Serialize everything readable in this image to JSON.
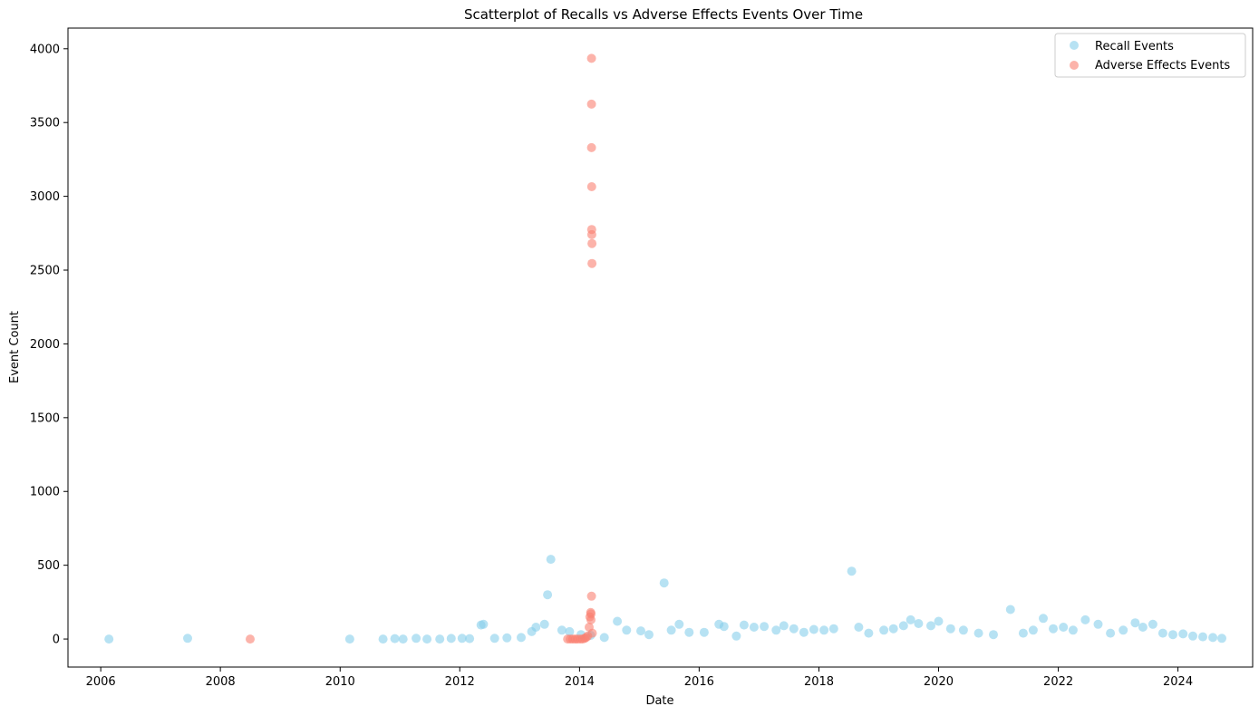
{
  "chart_data": {
    "type": "scatter",
    "title": "Scatterplot of Recalls vs Adverse Effects Events Over Time",
    "xlabel": "Date",
    "ylabel": "Event Count",
    "x_is_date": true,
    "xlim": [
      "2005-06-15",
      "2025-04-01"
    ],
    "ylim": [
      -190,
      4140
    ],
    "xticks": [
      "2006",
      "2008",
      "2010",
      "2012",
      "2014",
      "2016",
      "2018",
      "2020",
      "2022",
      "2024"
    ],
    "yticks": [
      0,
      500,
      1000,
      1500,
      2000,
      2500,
      3000,
      3500,
      4000
    ],
    "grid": false,
    "legend_position": "upper-right",
    "series": [
      {
        "name": "Recall Events",
        "color": "#87CEEB",
        "x": [
          "2006-02-20",
          "2007-06-15",
          "2010-03-01",
          "2010-09-20",
          "2010-12-01",
          "2011-01-20",
          "2011-04-10",
          "2011-06-15",
          "2011-09-01",
          "2011-11-10",
          "2012-01-15",
          "2012-03-01",
          "2012-05-10",
          "2012-05-25",
          "2012-08-01",
          "2012-10-15",
          "2013-01-10",
          "2013-03-15",
          "2013-04-10",
          "2013-06-01",
          "2013-06-20",
          "2013-07-10",
          "2013-09-15",
          "2013-11-01",
          "2014-01-10",
          "2014-03-10",
          "2014-06-01",
          "2014-08-20",
          "2014-10-15",
          "2015-01-10",
          "2015-03-01",
          "2015-06-01",
          "2015-07-15",
          "2015-09-01",
          "2015-11-01",
          "2016-02-01",
          "2016-05-01",
          "2016-06-01",
          "2016-08-15",
          "2016-10-01",
          "2016-12-01",
          "2017-02-01",
          "2017-04-15",
          "2017-06-01",
          "2017-08-01",
          "2017-10-01",
          "2017-12-01",
          "2018-02-01",
          "2018-04-01",
          "2018-07-20",
          "2018-09-01",
          "2018-11-01",
          "2019-02-01",
          "2019-04-01",
          "2019-06-01",
          "2019-07-15",
          "2019-09-01",
          "2019-11-15",
          "2020-01-01",
          "2020-03-15",
          "2020-06-01",
          "2020-09-01",
          "2020-12-01",
          "2021-03-15",
          "2021-06-01",
          "2021-08-01",
          "2021-10-01",
          "2021-12-01",
          "2022-02-01",
          "2022-04-01",
          "2022-06-15",
          "2022-09-01",
          "2022-11-15",
          "2023-02-01",
          "2023-04-15",
          "2023-06-01",
          "2023-08-01",
          "2023-10-01",
          "2023-12-01",
          "2024-02-01",
          "2024-04-01",
          "2024-06-01",
          "2024-08-01",
          "2024-09-25"
        ],
        "y": [
          0,
          5,
          0,
          0,
          3,
          0,
          5,
          0,
          0,
          4,
          5,
          3,
          95,
          100,
          5,
          8,
          10,
          50,
          80,
          100,
          300,
          540,
          60,
          50,
          30,
          25,
          10,
          120,
          60,
          55,
          30,
          380,
          60,
          100,
          45,
          45,
          100,
          85,
          20,
          95,
          80,
          85,
          60,
          90,
          70,
          45,
          65,
          60,
          70,
          460,
          80,
          40,
          60,
          70,
          90,
          130,
          105,
          90,
          120,
          70,
          60,
          40,
          30,
          200,
          40,
          60,
          140,
          70,
          80,
          60,
          130,
          100,
          40,
          60,
          110,
          80,
          100,
          40,
          30,
          35,
          20,
          15,
          10,
          5
        ]
      },
      {
        "name": "Adverse Effects Events",
        "color": "#FA8072",
        "x": [
          "2008-07-01",
          "2013-10-20",
          "2013-11-05",
          "2013-11-20",
          "2013-12-05",
          "2013-12-20",
          "2014-01-05",
          "2014-01-20",
          "2014-02-01",
          "2014-02-10",
          "2014-02-20",
          "2014-03-01",
          "2014-03-05",
          "2014-03-10",
          "2014-03-12",
          "2014-03-15",
          "2014-03-15",
          "2014-03-15",
          "2014-03-16",
          "2014-03-16",
          "2014-03-17",
          "2014-03-18",
          "2014-03-18",
          "2014-03-15",
          "2014-03-12",
          "2014-03-20"
        ],
        "y": [
          0,
          0,
          0,
          0,
          0,
          0,
          0,
          0,
          5,
          10,
          20,
          80,
          150,
          180,
          170,
          3935,
          3625,
          3330,
          3065,
          2775,
          2740,
          2680,
          2545,
          290,
          130,
          40
        ]
      }
    ]
  }
}
